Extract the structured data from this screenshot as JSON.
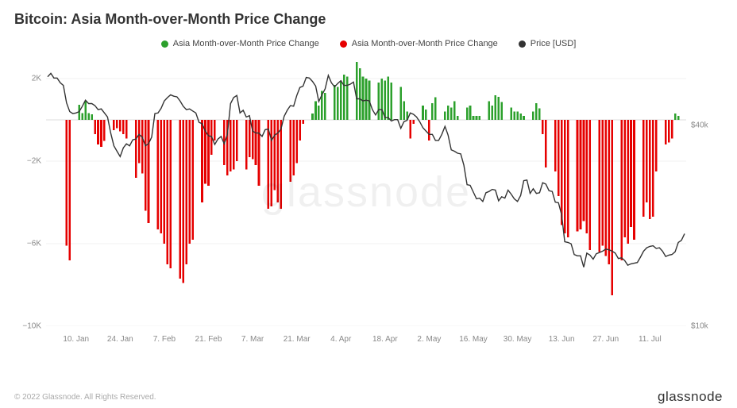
{
  "title": "Bitcoin: Asia Month-over-Month Price Change",
  "legend": {
    "pos_label": "Asia Month-over-Month Price Change",
    "neg_label": "Asia Month-over-Month Price Change",
    "price_label": "Price [USD]"
  },
  "footer": "© 2022 Glassnode. All Rights Reserved.",
  "brand": "glassnode",
  "watermark": "glassnode",
  "chart": {
    "type": "bar+line",
    "background_color": "#ffffff",
    "grid_color": "#f0f0f0",
    "pos_color": "#2ca02c",
    "neg_color": "#e60000",
    "price_color": "#333333",
    "bar_width_ratio": 0.65,
    "y_left": {
      "min": -10000,
      "max": 3000,
      "ticks": [
        -10000,
        -6000,
        -2000,
        2000
      ],
      "tick_labels": [
        "−10K",
        "−6K",
        "−2K",
        "2K"
      ]
    },
    "y_right": {
      "min": 10000,
      "max": 50000,
      "ticks": [
        10000,
        40000
      ],
      "tick_labels": [
        "$10k",
        "$40k"
      ]
    },
    "x_ticks": [
      "10. Jan",
      "24. Jan",
      "7. Feb",
      "21. Feb",
      "7. Mar",
      "21. Mar",
      "4. Apr",
      "18. Apr",
      "2. May",
      "16. May",
      "30. May",
      "13. Jun",
      "27. Jun",
      "11. Jul"
    ],
    "x_tick_idx": [
      9,
      23,
      37,
      51,
      65,
      79,
      93,
      107,
      121,
      135,
      149,
      163,
      177,
      191
    ],
    "n_points": 203,
    "values": [
      0,
      0,
      0,
      0,
      0,
      0,
      -6100,
      -6800,
      0,
      0,
      740,
      320,
      900,
      320,
      260,
      -700,
      -1200,
      -1300,
      -1020,
      0,
      0,
      -500,
      -400,
      -550,
      -700,
      -900,
      0,
      0,
      -2800,
      -2100,
      -2600,
      -4400,
      -5000,
      0,
      0,
      -5300,
      -5500,
      -6000,
      -7000,
      -7200,
      0,
      0,
      -7700,
      -7900,
      -7000,
      -6000,
      -5800,
      0,
      0,
      -4000,
      -3100,
      -3200,
      -1700,
      -1000,
      0,
      0,
      -2200,
      -2700,
      -2500,
      -2400,
      -2000,
      0,
      0,
      -2400,
      -1800,
      -1900,
      -2200,
      -3200,
      0,
      0,
      -4300,
      -4200,
      -3400,
      -4000,
      -4300,
      0,
      0,
      -3000,
      -2700,
      -2100,
      -1000,
      -200,
      0,
      0,
      300,
      900,
      700,
      1400,
      1300,
      0,
      0,
      1700,
      1600,
      1900,
      2200,
      2100,
      0,
      0,
      2800,
      2500,
      2100,
      2000,
      1900,
      0,
      0,
      1800,
      2000,
      1900,
      2100,
      1800,
      0,
      0,
      1600,
      900,
      400,
      -900,
      -200,
      0,
      0,
      700,
      500,
      -1000,
      800,
      1100,
      0,
      0,
      400,
      700,
      600,
      900,
      200,
      0,
      0,
      600,
      700,
      200,
      200,
      200,
      0,
      0,
      900,
      700,
      1200,
      1120,
      870,
      0,
      0,
      600,
      400,
      400,
      300,
      200,
      0,
      0,
      400,
      800,
      550,
      -700,
      -2300,
      0,
      0,
      -2500,
      -3700,
      -5100,
      -5500,
      -5700,
      0,
      0,
      -5400,
      -5300,
      -4900,
      -5500,
      -6300,
      0,
      0,
      -6400,
      -6100,
      -6600,
      -7000,
      -8500,
      0,
      0,
      -6800,
      -5700,
      -6000,
      -5200,
      -5800,
      0,
      0,
      -4700,
      -4000,
      -4800,
      -4700,
      -2500,
      0,
      0,
      -1200,
      -1100,
      -900,
      300,
      200
    ],
    "price": [
      47200,
      47700,
      47000,
      47000,
      46300,
      45900,
      43300,
      42000,
      41700,
      41800,
      42000,
      42800,
      43700,
      43200,
      43200,
      42900,
      42300,
      42400,
      41800,
      41200,
      38800,
      36900,
      36100,
      35300,
      36600,
      37200,
      36900,
      37800,
      37900,
      38600,
      38200,
      36900,
      37200,
      38200,
      41700,
      41800,
      42500,
      43600,
      44100,
      44500,
      44300,
      44200,
      43600,
      42800,
      42300,
      42400,
      42100,
      41800,
      40400,
      40200,
      39100,
      38400,
      38300,
      37100,
      37900,
      38300,
      37200,
      38600,
      43200,
      44100,
      44400,
      41800,
      42200,
      41200,
      41400,
      39100,
      38800,
      38800,
      38300,
      39300,
      39400,
      37700,
      38500,
      38800,
      39400,
      41300,
      42200,
      42900,
      42800,
      44400,
      45600,
      45800,
      47100,
      47000,
      46500,
      45800,
      43500,
      44500,
      45400,
      47400,
      46300,
      45700,
      46200,
      46600,
      45900,
      45900,
      46100,
      46400,
      43900,
      43900,
      43600,
      43700,
      43600,
      42300,
      41500,
      42300,
      42300,
      41100,
      41100,
      40600,
      40800,
      40800,
      39500,
      40500,
      40700,
      41800,
      41600,
      41200,
      40500,
      39600,
      39100,
      38600,
      38600,
      37700,
      37700,
      38600,
      39800,
      38500,
      36300,
      36100,
      35800,
      35700,
      34000,
      31100,
      31000,
      30000,
      29000,
      29100,
      28600,
      29900,
      30100,
      30400,
      30300,
      28700,
      29300,
      29100,
      30300,
      29700,
      29000,
      28600,
      29500,
      31700,
      31800,
      29800,
      30500,
      29800,
      29900,
      31400,
      31200,
      30200,
      30100,
      28500,
      28400,
      26600,
      22600,
      22500,
      22300,
      20700,
      20500,
      20500,
      18800,
      20900,
      20600,
      20000,
      20800,
      21000,
      21200,
      21500,
      21400,
      21200,
      20900,
      20100,
      20200,
      19800,
      19100,
      19300,
      19400,
      19500,
      20300,
      21200,
      21700,
      21900,
      22000,
      21600,
      21700,
      21200,
      20400,
      20600,
      20700,
      21100,
      22500,
      22800,
      23800
    ]
  }
}
